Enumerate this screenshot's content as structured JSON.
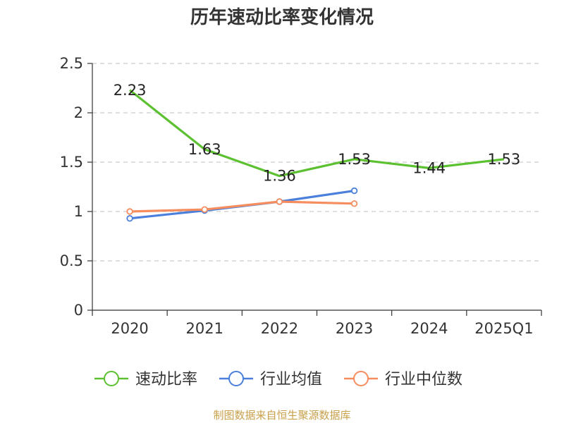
{
  "title": "历年速动比率变化情况",
  "source": "制图数据来自恒生聚源数据库",
  "chart_data": {
    "type": "line",
    "title": "历年速动比率变化情况",
    "categories": [
      "2020",
      "2021",
      "2022",
      "2023",
      "2024",
      "2025Q1"
    ],
    "yticks": [
      "0",
      "0.5",
      "1",
      "1.5",
      "2",
      "2.5"
    ],
    "ylim": [
      0,
      2.5
    ],
    "grid": true,
    "legend_position": "bottom",
    "series": [
      {
        "name": "速动比率",
        "color": "#5cc130",
        "values": [
          2.23,
          1.63,
          1.36,
          1.53,
          1.44,
          1.53
        ],
        "labels": [
          "2.23",
          "1.63",
          "1.36",
          "1.53",
          "1.44",
          "1.53"
        ],
        "show_labels": true
      },
      {
        "name": "行业均值",
        "color": "#4a7fdc",
        "values": [
          0.93,
          1.01,
          1.1,
          1.21,
          null,
          null
        ],
        "show_labels": false
      },
      {
        "name": "行业中位数",
        "color": "#f58d5f",
        "values": [
          1.0,
          1.02,
          1.1,
          1.08,
          null,
          null
        ],
        "show_labels": false
      }
    ]
  }
}
